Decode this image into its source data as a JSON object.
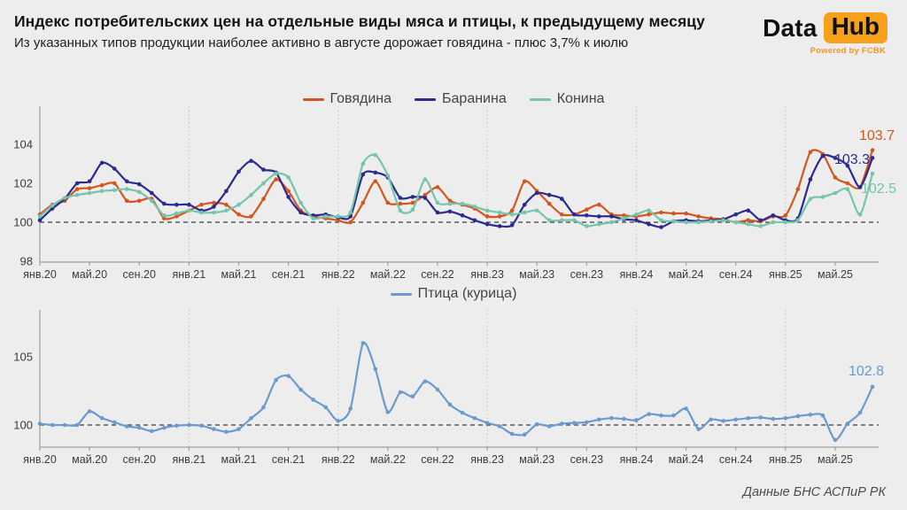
{
  "header": {
    "title": "Индекс потребительских цен на отдельные виды мяса и птицы, к предыдущему месяцу",
    "subtitle": "Из указанных типов продукции наиболее активно в августе дорожает говядина - плюс 3,7% к июлю"
  },
  "logo": {
    "word1": "Data",
    "word2": "Hub",
    "tagline": "Powered by FCBK",
    "accent_color": "#f7a01b"
  },
  "source": "Данные БНС АСПиР РК",
  "colors": {
    "background": "#ededed",
    "baseline_dash": "#3d3d3d",
    "axis": "#9e9e9e",
    "grid_dotted": "#c3c3c3",
    "tick_text": "#3c3c3c"
  },
  "chart_data": [
    {
      "type": "line",
      "title": "",
      "ylim": [
        98,
        106
      ],
      "yticks": [
        98,
        100,
        102,
        104
      ],
      "baseline": 100,
      "grid": "vertical-dotted-at-january",
      "legend_position": "top-center",
      "months_count": 68,
      "x_range": [
        "янв.20",
        "авг.25"
      ],
      "x_tick_labels": [
        "янв.20",
        "май.20",
        "сен.20",
        "янв.21",
        "май.21",
        "сен.21",
        "янв.22",
        "май.22",
        "сен.22",
        "янв.23",
        "май.23",
        "сен.23",
        "янв.24",
        "май.24",
        "сен.24",
        "янв.25",
        "май.25"
      ],
      "x_tick_every_months": 4,
      "year_gridline_month_indices": [
        12,
        24,
        36,
        48,
        60
      ],
      "series": [
        {
          "name": "Говядина",
          "color": "#d4561e",
          "values": [
            100.4,
            100.9,
            101.1,
            101.7,
            101.75,
            101.9,
            102.0,
            101.1,
            101.1,
            101.2,
            100.2,
            100.3,
            100.6,
            100.9,
            101.0,
            100.9,
            100.4,
            100.3,
            101.2,
            102.2,
            101.6,
            100.6,
            100.3,
            100.2,
            100.1,
            100.0,
            101.0,
            102.1,
            101.0,
            100.95,
            101.0,
            101.4,
            101.8,
            101.1,
            100.9,
            100.7,
            100.3,
            100.3,
            100.6,
            102.1,
            101.6,
            100.95,
            100.4,
            100.4,
            100.65,
            100.9,
            100.4,
            100.35,
            100.3,
            100.4,
            100.5,
            100.45,
            100.45,
            100.3,
            100.2,
            100.15,
            100.0,
            100.1,
            100.05,
            100.3,
            100.35,
            101.7,
            103.6,
            103.5,
            102.3,
            102.0,
            101.8,
            103.7
          ]
        },
        {
          "name": "Баранина",
          "color": "#2a2a90",
          "values": [
            100.1,
            100.7,
            101.2,
            102.0,
            102.1,
            103.05,
            102.75,
            102.1,
            101.95,
            101.5,
            100.95,
            100.9,
            100.9,
            100.6,
            100.8,
            101.6,
            102.6,
            103.15,
            102.7,
            102.55,
            101.3,
            100.5,
            100.35,
            100.4,
            100.25,
            100.3,
            102.45,
            102.55,
            102.3,
            101.25,
            101.3,
            101.25,
            100.5,
            100.55,
            100.35,
            100.1,
            99.9,
            99.8,
            99.85,
            100.9,
            101.5,
            101.4,
            101.2,
            100.4,
            100.35,
            100.3,
            100.3,
            100.15,
            100.1,
            99.9,
            99.75,
            100.05,
            100.1,
            100.05,
            100.1,
            100.15,
            100.4,
            100.6,
            100.1,
            100.35,
            100.1,
            100.2,
            102.2,
            103.4,
            103.3,
            102.9,
            101.8,
            103.3
          ]
        },
        {
          "name": "Конина",
          "color": "#74c5ab",
          "values": [
            100.3,
            100.85,
            101.25,
            101.4,
            101.5,
            101.6,
            101.65,
            101.7,
            101.55,
            101.1,
            100.35,
            100.45,
            100.6,
            100.5,
            100.5,
            100.6,
            100.9,
            101.4,
            102.0,
            102.5,
            102.3,
            101.0,
            100.2,
            100.3,
            100.3,
            100.5,
            103.0,
            103.45,
            102.4,
            100.6,
            100.65,
            102.2,
            101.0,
            100.95,
            100.95,
            100.8,
            100.6,
            100.5,
            100.4,
            100.5,
            100.6,
            100.1,
            100.1,
            100.1,
            99.8,
            99.9,
            100.0,
            100.2,
            100.4,
            100.6,
            100.1,
            100.05,
            100.0,
            100.0,
            100.05,
            100.1,
            100.0,
            99.9,
            99.8,
            100.0,
            100.0,
            100.1,
            101.2,
            101.3,
            101.5,
            101.7,
            100.4,
            102.5
          ]
        }
      ],
      "end_labels": [
        {
          "label": "103.7",
          "series": "Говядина",
          "color": "#d4561e"
        },
        {
          "label": "103.3",
          "series": "Баранина",
          "color": "#2a2a90"
        },
        {
          "label": "102.5",
          "series": "Конина",
          "color": "#74c5ab"
        }
      ]
    },
    {
      "type": "line",
      "title": "",
      "ylim": [
        98.5,
        108
      ],
      "yticks": [
        100,
        105
      ],
      "baseline": 100,
      "grid": "vertical-dotted-at-january",
      "legend_position": "top-center",
      "months_count": 68,
      "x_range": [
        "янв.20",
        "авг.25"
      ],
      "x_tick_labels": [
        "янв.20",
        "май.20",
        "сен.20",
        "янв.21",
        "май.21",
        "сен.21",
        "янв.22",
        "май.22",
        "сен.22",
        "янв.23",
        "май.23",
        "сен.23",
        "янв.24",
        "май.24",
        "сен.24",
        "янв.25",
        "май.25"
      ],
      "x_tick_every_months": 4,
      "year_gridline_month_indices": [
        12,
        24,
        36,
        48,
        60
      ],
      "series": [
        {
          "name": "Птица (курица)",
          "color": "#6b9bce",
          "values": [
            100.1,
            100.0,
            100.0,
            100.0,
            101.0,
            100.5,
            100.2,
            99.9,
            99.8,
            99.55,
            99.8,
            99.95,
            100.0,
            99.95,
            99.7,
            99.5,
            99.7,
            100.5,
            101.3,
            103.3,
            103.6,
            102.6,
            101.85,
            101.3,
            100.3,
            101.2,
            106.0,
            104.1,
            100.95,
            102.4,
            102.1,
            103.2,
            102.6,
            101.5,
            100.9,
            100.5,
            100.15,
            99.9,
            99.35,
            99.3,
            100.05,
            99.9,
            100.1,
            100.15,
            100.2,
            100.4,
            100.5,
            100.45,
            100.35,
            100.8,
            100.7,
            100.7,
            101.2,
            99.7,
            100.4,
            100.3,
            100.4,
            100.5,
            100.55,
            100.45,
            100.5,
            100.65,
            100.75,
            100.7,
            98.9,
            100.1,
            100.9,
            102.8
          ]
        }
      ],
      "end_labels": [
        {
          "label": "102.8",
          "series": "Птица (курица)",
          "color": "#6b9bce"
        }
      ]
    }
  ]
}
